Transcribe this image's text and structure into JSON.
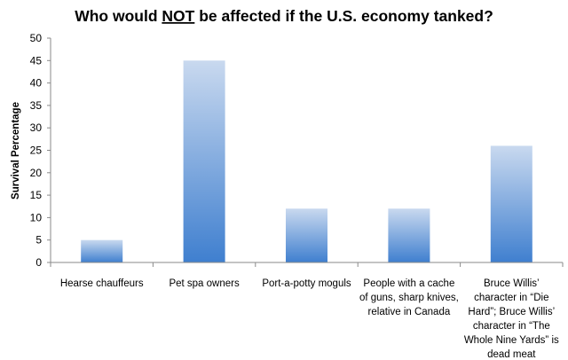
{
  "chart_data": {
    "type": "bar",
    "title_parts": [
      "Who would ",
      "NOT",
      " be affected if the U.S. economy tanked?"
    ],
    "xlabel": "",
    "ylabel": "Survival Percentage",
    "ylim": [
      0,
      50
    ],
    "ytick_step": 5,
    "grid": false,
    "legend": "none",
    "categories": [
      [
        "Hearse chauffeurs"
      ],
      [
        "Pet spa owners"
      ],
      [
        "Port-a-potty moguls"
      ],
      [
        "People with a cache",
        "of guns, sharp knives,",
        "relative in Canada"
      ],
      [
        "Bruce Willis’",
        "character in “Die",
        "Hard”; Bruce Willis’",
        "character in “The",
        "Whole Nine Yards” is",
        "dead meat"
      ]
    ],
    "values": [
      5,
      45,
      12,
      12,
      26
    ],
    "colors": {
      "bar_top": "#c9d9ef",
      "bar_bottom": "#3f7fcf",
      "axis": "#8a8a8a"
    }
  }
}
